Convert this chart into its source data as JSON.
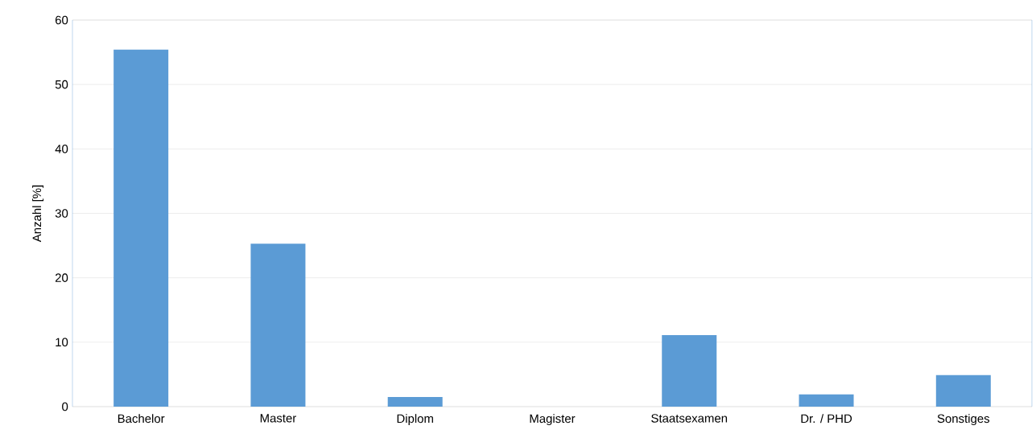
{
  "chart_data": {
    "type": "bar",
    "ylabel": "Anzahl [%]",
    "categories": [
      "Bachelor",
      "Master",
      "Diplom",
      "Magister",
      "Staatsexamen",
      "Dr. / PHD",
      "Sonstiges"
    ],
    "values": [
      55.4,
      25.3,
      1.5,
      0,
      11.1,
      1.9,
      4.9
    ],
    "color": "#5b9bd5",
    "ylim": [
      0,
      60
    ],
    "yticks": [
      0,
      10,
      20,
      30,
      40,
      50,
      60
    ],
    "grid": "y"
  }
}
